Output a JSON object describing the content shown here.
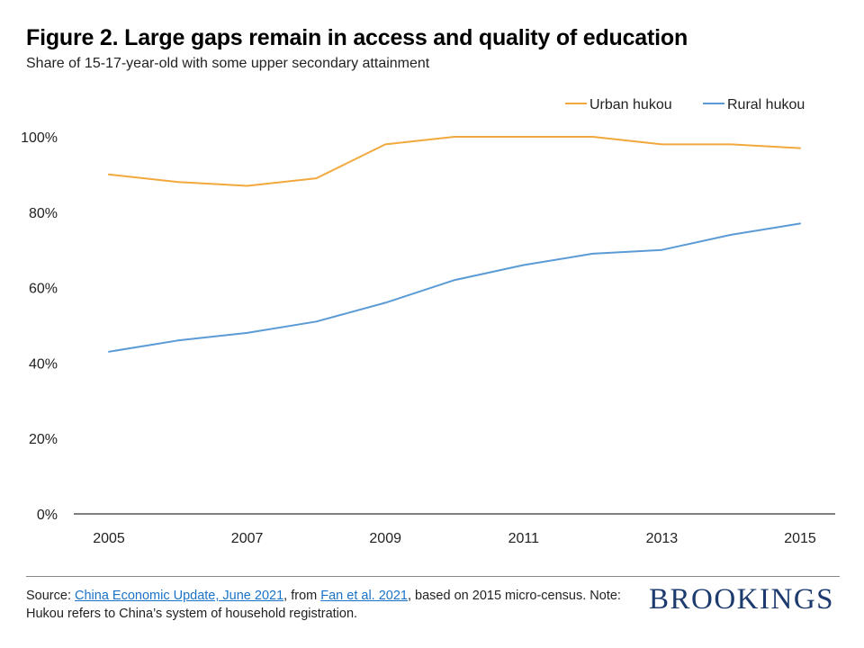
{
  "header": {
    "title": "Figure 2. Large gaps remain in access and quality of education",
    "subtitle": "Share of 15-17-year-old with some upper secondary attainment"
  },
  "chart_data": {
    "type": "line",
    "title": "Figure 2. Large gaps remain in access and quality of education",
    "subtitle": "Share of 15-17-year-old with some upper secondary attainment",
    "xlabel": "",
    "ylabel": "",
    "x": [
      2005,
      2006,
      2007,
      2008,
      2009,
      2010,
      2011,
      2012,
      2013,
      2014,
      2015
    ],
    "x_tick_labels": [
      "2005",
      "2007",
      "2009",
      "2011",
      "2013",
      "2015"
    ],
    "x_tick_values": [
      2005,
      2007,
      2009,
      2011,
      2013,
      2015
    ],
    "y_tick_labels": [
      "0%",
      "20%",
      "40%",
      "60%",
      "80%",
      "100%"
    ],
    "y_tick_values": [
      0,
      20,
      40,
      60,
      80,
      100
    ],
    "ylim": [
      0,
      100
    ],
    "grid": false,
    "legend_position": "top-right",
    "series": [
      {
        "name": "Urban hukou",
        "color": "#f2a83c",
        "values": [
          90,
          88,
          87,
          89,
          98,
          100,
          100,
          100,
          98,
          98,
          97
        ]
      },
      {
        "name": "Rural hukou",
        "color": "#5b9bd5",
        "values": [
          43,
          46,
          48,
          51,
          56,
          62,
          66,
          69,
          70,
          74,
          77
        ]
      }
    ]
  },
  "footer": {
    "source_prefix": "Source: ",
    "link1": "China Economic Update, June 2021",
    "mid_text": ", from ",
    "link2": "Fan et al. 2021",
    "suffix": ", based on 2015 micro-census. Note: Hukou refers to China’s system of household registration.",
    "brand": "BROOKINGS",
    "link_color": "#1a73c8",
    "brand_color": "#1d3b6e"
  }
}
